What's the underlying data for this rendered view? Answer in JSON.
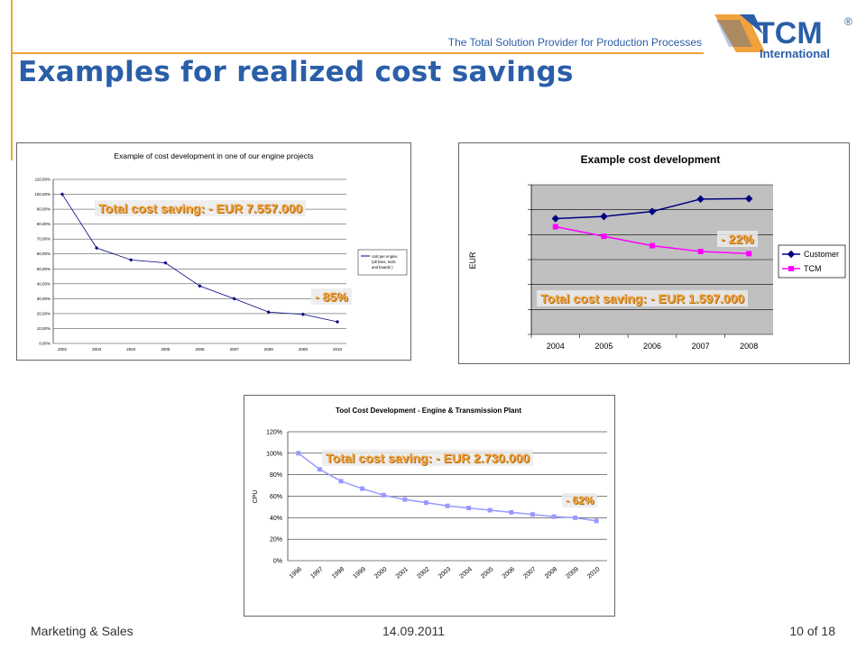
{
  "header": {
    "tagline": "The Total Solution Provider for Production Processes",
    "title": "Examples for realized cost savings",
    "logo": {
      "brand": "TCM",
      "sub": "International",
      "registered": "®"
    }
  },
  "colors": {
    "accent_orange": "#f0a23c",
    "brand_blue": "#2a5ea8",
    "customer_line": "#000080",
    "tcm_line": "#ff00ff",
    "tool_line": "#9999ff"
  },
  "charts": {
    "engine": {
      "title": "Example of cost development in one of our engine projects",
      "callout_total": "Total cost saving:    - EUR  7.557.000",
      "callout_pct": "- 85%",
      "legend": [
        "cost per engine",
        "(all lines, tools",
        "and boards )"
      ]
    },
    "example": {
      "title": "Example cost development",
      "ylabel": "EUR",
      "callout_pct": "- 22%",
      "callout_total": "Total cost saving:    - EUR  1.597.000",
      "legend": [
        "Customer",
        "TCM"
      ]
    },
    "tool": {
      "title": "Tool Cost Development - Engine & Transmission Plant",
      "ylabel": "CPU",
      "callout_total": "Total cost saving:    - EUR  2.730.000",
      "callout_pct": "- 62%"
    }
  },
  "chart_data": [
    {
      "type": "line",
      "title": "Example of cost development in one of our engine projects",
      "x": [
        "2002",
        "2003",
        "2004",
        "2005",
        "2006",
        "2007",
        "2008",
        "2009",
        "2010"
      ],
      "series": [
        {
          "name": "cost per engine (all lines, tools and boards )",
          "values": [
            100,
            64,
            56,
            54,
            38.5,
            30,
            21,
            19.5,
            14.5
          ]
        }
      ],
      "yticks": [
        "0,00%",
        "10,00%",
        "20,00%",
        "30,00%",
        "40,00%",
        "50,00%",
        "60,00%",
        "70,00%",
        "80,00%",
        "90,00%",
        "100,00%",
        "110,00%"
      ],
      "ylim": [
        0,
        110
      ]
    },
    {
      "type": "line",
      "title": "Example cost development",
      "ylabel": "EUR",
      "x": [
        "2004",
        "2005",
        "2006",
        "2007",
        "2008"
      ],
      "series": [
        {
          "name": "Customer",
          "values": [
            5.42,
            5.52,
            5.75,
            6.33,
            6.35
          ]
        },
        {
          "name": "TCM",
          "values": [
            5.04,
            4.59,
            4.15,
            3.88,
            3.78
          ]
        }
      ],
      "ylim": [
        0,
        7
      ]
    },
    {
      "type": "line",
      "title": "Tool Cost Development - Engine & Transmission Plant",
      "ylabel": "CPU",
      "x": [
        "1996",
        "1997",
        "1998",
        "1999",
        "2000",
        "2001",
        "2002",
        "2003",
        "2004",
        "2005",
        "2006",
        "2007",
        "2008",
        "2009",
        "2010"
      ],
      "series": [
        {
          "name": "",
          "values": [
            100,
            85,
            74,
            67,
            61,
            57,
            54,
            51,
            49,
            47,
            45,
            43,
            41,
            40,
            37
          ]
        }
      ],
      "yticks": [
        "0%",
        "20%",
        "40%",
        "60%",
        "80%",
        "100%",
        "120%"
      ],
      "ylim": [
        0,
        120
      ]
    }
  ],
  "footer": {
    "left": "Marketing & Sales",
    "center": "14.09.2011",
    "right": "10 of 18"
  }
}
